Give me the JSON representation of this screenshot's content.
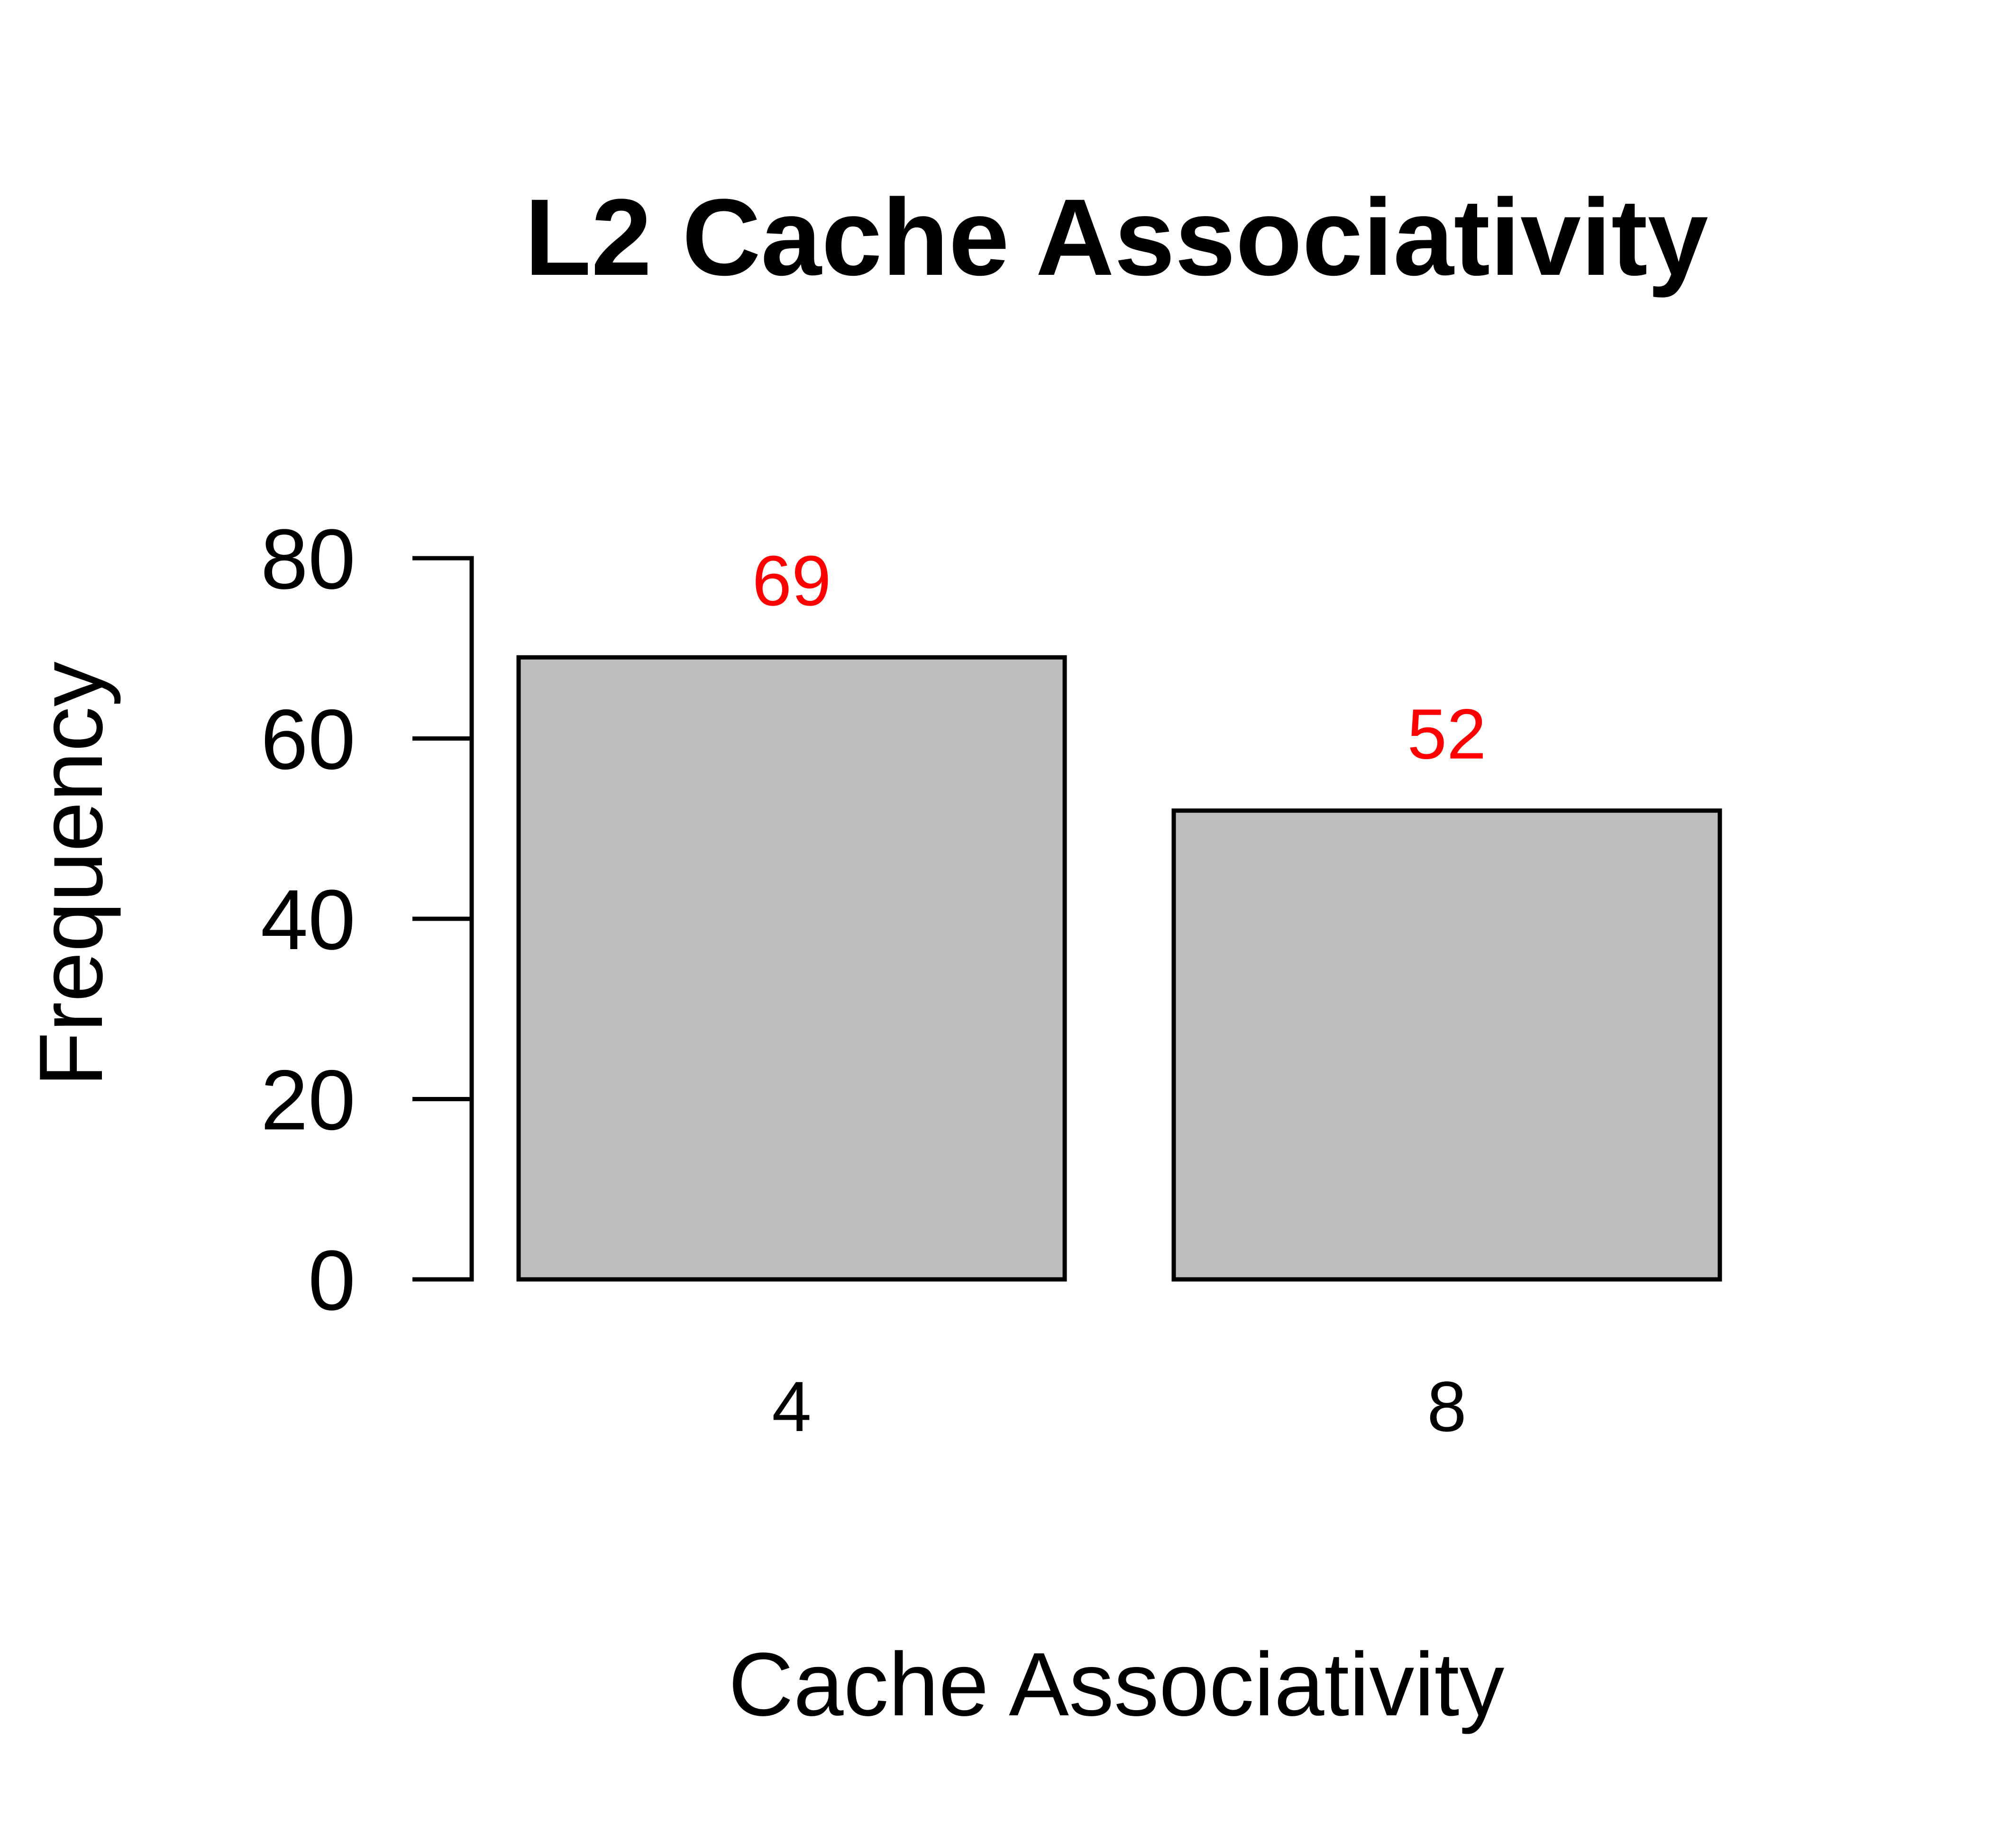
{
  "chart_data": {
    "type": "bar",
    "title": "L2 Cache Associativity",
    "xlabel": "Cache Associativity",
    "ylabel": "Frequency",
    "categories": [
      "4",
      "8"
    ],
    "values": [
      69,
      52
    ],
    "value_labels": [
      "69",
      "52"
    ],
    "ylim": [
      0,
      80
    ],
    "yticks": [
      0,
      20,
      40,
      60,
      80
    ],
    "ytick_labels": [
      "0",
      "20",
      "40",
      "60",
      "80"
    ],
    "grid": false,
    "colors": {
      "bar_fill": "#bebebe",
      "bar_stroke": "#000000",
      "value_label": "#ff0000"
    }
  }
}
